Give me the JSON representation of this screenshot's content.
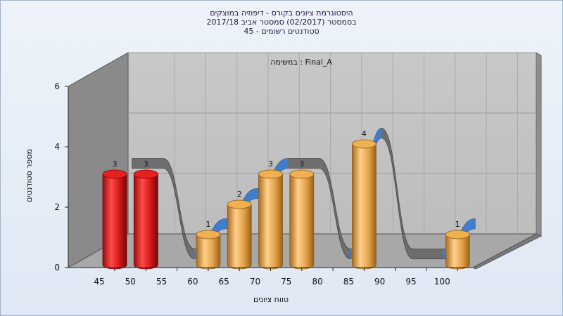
{
  "titles": {
    "line1": "היסטוגרמת ציונים בקורס - דיפוזיה במוצקים",
    "line2": "בסמסטר  (02/2017)  סמסטר אביב 2017/18",
    "line3": "סטודנטים רשומים - 45"
  },
  "chart_data": {
    "type": "bar",
    "subtitle": "במשימה : Final_A",
    "xlabel": "טווח ציונים",
    "ylabel": "מספר סטודנטים",
    "categories": [
      "45",
      "50",
      "55",
      "60",
      "65",
      "70",
      "75",
      "80",
      "85",
      "90",
      "95",
      "100"
    ],
    "ylim": [
      0,
      6
    ],
    "yticks": [
      0,
      2,
      4,
      6
    ],
    "grid": true,
    "series": [
      {
        "values": [
          3,
          3,
          0,
          1,
          2,
          3,
          3,
          0,
          4,
          0,
          0,
          1
        ]
      }
    ],
    "bar_colors": [
      "#e02020",
      "#e02020",
      "",
      "#e8a040",
      "#e8a040",
      "#e8a040",
      "#e8a040",
      "",
      "#e8a040",
      "",
      "",
      "#e8a040"
    ],
    "trend_colors": {
      "ribbon_top": "#6a6a6a",
      "ribbon_side": "#4a4a4a",
      "rising": "#3a7fd8"
    },
    "wall_colors": {
      "back": "#c4c4c4",
      "left": "#8a8a8a",
      "floor": "#a8a8a8"
    }
  }
}
